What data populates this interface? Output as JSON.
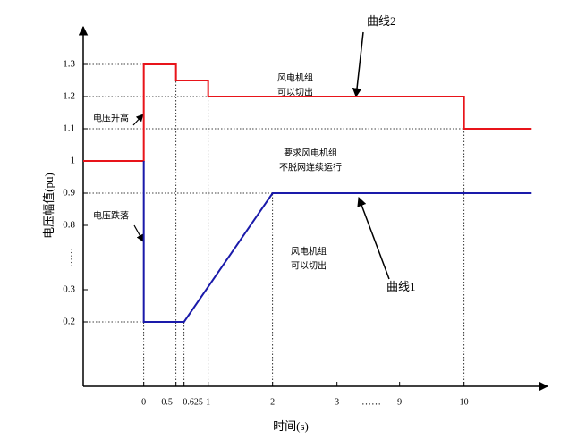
{
  "chart_data": {
    "type": "line",
    "x_label": "时间(s)",
    "y_label": "电压幅值(pu)",
    "xlim": [
      -0.94,
      11.26
    ],
    "xticks": [
      0,
      0.5,
      0.625,
      1,
      2,
      3,
      9,
      10
    ],
    "xbreak": [
      3,
      9
    ],
    "ylim": [
      0,
      1.43
    ],
    "yticks": [
      0.2,
      0.3,
      0.8,
      0.9,
      1.0,
      1.1,
      1.2,
      1.3
    ],
    "ybreak": [
      0.3,
      0.8
    ],
    "break_label": "……",
    "series": [
      {
        "name": "曲线2",
        "color": "#e8141a",
        "x": [
          -0.94,
          0,
          0,
          0.5,
          0.5,
          1,
          1,
          10,
          10,
          11.05
        ],
        "values": [
          1.0,
          1.0,
          1.3,
          1.3,
          1.25,
          1.25,
          1.2,
          1.2,
          1.1,
          1.1
        ]
      },
      {
        "name": "曲线1",
        "color": "#1a1aaa",
        "x": [
          0,
          0,
          0.625,
          2,
          11.05
        ],
        "values": [
          1.0,
          0.2,
          0.2,
          0.9,
          0.9
        ]
      }
    ],
    "annotations": [
      {
        "text": [
          "风电机组",
          "可以切出"
        ]
      },
      {
        "text": [
          "电压升高"
        ]
      },
      {
        "text": [
          "要求风电机组",
          "不脱网连续运行"
        ]
      },
      {
        "text": [
          "电压跌落"
        ]
      },
      {
        "text": [
          "风电机组",
          "可以切出"
        ]
      }
    ]
  }
}
